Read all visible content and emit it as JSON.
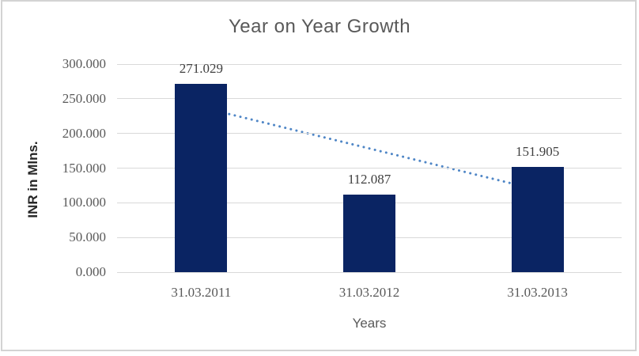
{
  "chart_data": {
    "type": "bar",
    "title": "Year on Year Growth",
    "xlabel": "Years",
    "ylabel": "INR in Mlns.",
    "categories": [
      "31.03.2011",
      "31.03.2012",
      "31.03.2013"
    ],
    "values": [
      271.029,
      112.087,
      151.905
    ],
    "value_labels": [
      "271.029",
      "112.087",
      "151.905"
    ],
    "yticks": [
      {
        "value": 0,
        "label": "0.000"
      },
      {
        "value": 50,
        "label": "50.000"
      },
      {
        "value": 100,
        "label": "100.000"
      },
      {
        "value": 150,
        "label": "150.000"
      },
      {
        "value": 200,
        "label": "200.000"
      },
      {
        "value": 250,
        "label": "250.000"
      },
      {
        "value": 300,
        "label": "300.000"
      }
    ],
    "ylim": [
      0,
      300
    ],
    "grid": true,
    "legend": "none",
    "trendline": {
      "type": "linear",
      "style": "dotted"
    },
    "colors": {
      "bar": "#0A2463",
      "trendline": "#4F86C6",
      "gridline": "#D9D9D9",
      "title_text": "#595959",
      "tick_text": "#595959",
      "data_label_text": "#3F3F3F",
      "axis_title_text": "#262626",
      "border": "#D3D3D3",
      "background": "#FFFFFF"
    }
  }
}
